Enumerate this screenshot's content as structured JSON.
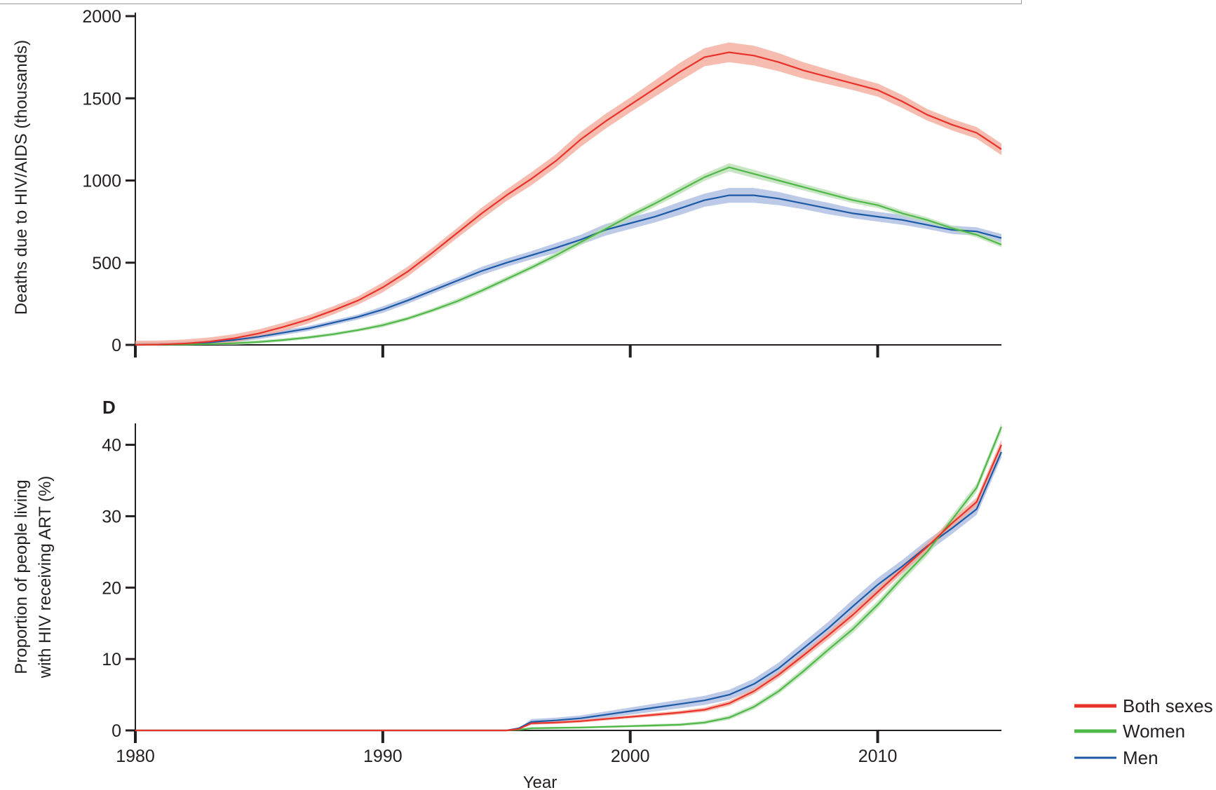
{
  "colors": {
    "both_sexes": "#e8322a",
    "women": "#4fb848",
    "men": "#1c5aa6",
    "both_sexes_band": "#f4a696",
    "women_band": "#b7deb0",
    "men_band": "#a6b8e0",
    "axis": "#231f20"
  },
  "legend": [
    {
      "key": "both_sexes",
      "label": "Both sexes"
    },
    {
      "key": "women",
      "label": "Women"
    },
    {
      "key": "men",
      "label": "Men"
    }
  ],
  "chart_data": [
    {
      "type": "line",
      "panel": "",
      "title": "",
      "xlabel": "",
      "ylabel": "Deaths due to HIV/AIDS (thousands)",
      "xlim": [
        1980,
        2015
      ],
      "ylim": [
        0,
        2000
      ],
      "xticks": [
        1980,
        1990,
        2000,
        2010
      ],
      "yticks": [
        0,
        500,
        1000,
        1500,
        2000
      ],
      "show_x_tick_labels": false,
      "x": [
        1980,
        1981,
        1982,
        1983,
        1984,
        1985,
        1986,
        1987,
        1988,
        1989,
        1990,
        1991,
        1992,
        1993,
        1994,
        1995,
        1996,
        1997,
        1998,
        1999,
        2000,
        2001,
        2002,
        2003,
        2004,
        2005,
        2006,
        2007,
        2008,
        2009,
        2010,
        2011,
        2012,
        2013,
        2014,
        2015
      ],
      "series": [
        {
          "name": "Both sexes",
          "key": "both_sexes",
          "values": [
            0,
            2,
            8,
            20,
            40,
            70,
            110,
            155,
            210,
            270,
            350,
            445,
            560,
            680,
            800,
            910,
            1010,
            1120,
            1250,
            1360,
            1460,
            1560,
            1660,
            1750,
            1780,
            1760,
            1720,
            1670,
            1630,
            1590,
            1550,
            1480,
            1400,
            1340,
            1290,
            1190
          ],
          "band": [
            25,
            25,
            25,
            25,
            25,
            25,
            25,
            25,
            25,
            25,
            30,
            30,
            30,
            30,
            35,
            35,
            40,
            40,
            45,
            45,
            45,
            50,
            55,
            55,
            60,
            60,
            55,
            50,
            45,
            40,
            40,
            40,
            35,
            35,
            35,
            35
          ]
        },
        {
          "name": "Men",
          "key": "men",
          "values": [
            0,
            2,
            6,
            15,
            30,
            50,
            75,
            100,
            135,
            170,
            215,
            270,
            330,
            390,
            450,
            500,
            545,
            590,
            640,
            700,
            740,
            780,
            830,
            880,
            910,
            910,
            890,
            860,
            830,
            800,
            780,
            760,
            730,
            700,
            690,
            650
          ],
          "band": [
            15,
            15,
            15,
            15,
            15,
            15,
            15,
            15,
            15,
            15,
            20,
            20,
            20,
            20,
            25,
            25,
            25,
            30,
            30,
            35,
            35,
            35,
            40,
            40,
            45,
            45,
            40,
            35,
            35,
            30,
            30,
            30,
            25,
            25,
            25,
            25
          ]
        },
        {
          "name": "Women",
          "key": "women",
          "values": [
            0,
            1,
            2,
            5,
            10,
            18,
            30,
            45,
            65,
            90,
            120,
            160,
            210,
            265,
            330,
            400,
            470,
            545,
            625,
            705,
            785,
            860,
            940,
            1020,
            1080,
            1040,
            1000,
            960,
            920,
            880,
            850,
            800,
            760,
            710,
            670,
            610
          ],
          "band": [
            10,
            10,
            10,
            10,
            10,
            10,
            10,
            10,
            10,
            10,
            12,
            12,
            12,
            15,
            15,
            15,
            15,
            18,
            18,
            20,
            20,
            20,
            22,
            22,
            25,
            25,
            22,
            20,
            20,
            18,
            18,
            18,
            16,
            16,
            16,
            16
          ]
        }
      ]
    },
    {
      "type": "line",
      "panel": "D",
      "title": "",
      "xlabel": "Year",
      "ylabel": "Proportion of people living with HIV receiving ART (%)",
      "xlim": [
        1980,
        2015
      ],
      "ylim": [
        0,
        43
      ],
      "xticks": [
        1980,
        1990,
        2000,
        2010
      ],
      "yticks": [
        0,
        10,
        20,
        30,
        40
      ],
      "show_x_tick_labels": true,
      "x": [
        1980,
        1985,
        1990,
        1995,
        1995.5,
        1996,
        1997,
        1998,
        1999,
        2000,
        2001,
        2002,
        2003,
        2004,
        2005,
        2006,
        2007,
        2008,
        2009,
        2010,
        2011,
        2012,
        2013,
        2014,
        2015
      ],
      "series": [
        {
          "name": "Both sexes",
          "key": "both_sexes",
          "values": [
            0,
            0,
            0,
            0,
            0.2,
            1.0,
            1.1,
            1.3,
            1.6,
            1.9,
            2.2,
            2.5,
            2.9,
            3.8,
            5.5,
            7.8,
            10.5,
            13.3,
            16.2,
            19.4,
            22.6,
            25.7,
            29.0,
            32.0,
            40.0
          ],
          "band": [
            0,
            0,
            0,
            0,
            0,
            0.2,
            0.2,
            0.2,
            0.2,
            0.2,
            0.25,
            0.25,
            0.3,
            0.35,
            0.4,
            0.45,
            0.5,
            0.55,
            0.6,
            0.6,
            0.6,
            0.6,
            0.6,
            0.6,
            0.7
          ]
        },
        {
          "name": "Women",
          "key": "women",
          "values": [
            0,
            0,
            0,
            0,
            0.1,
            0.3,
            0.35,
            0.4,
            0.5,
            0.6,
            0.7,
            0.8,
            1.1,
            1.8,
            3.3,
            5.5,
            8.3,
            11.3,
            14.2,
            17.6,
            21.4,
            25.0,
            29.5,
            34.0,
            42.5
          ],
          "band": [
            0,
            0,
            0,
            0,
            0,
            0.15,
            0.15,
            0.15,
            0.15,
            0.15,
            0.2,
            0.2,
            0.25,
            0.3,
            0.35,
            0.4,
            0.45,
            0.5,
            0.55,
            0.55,
            0.55,
            0.55,
            0.6,
            0.6,
            0.7
          ]
        },
        {
          "name": "Men",
          "key": "men",
          "values": [
            0,
            0,
            0,
            0,
            0.3,
            1.2,
            1.4,
            1.7,
            2.2,
            2.7,
            3.2,
            3.7,
            4.2,
            5.0,
            6.5,
            8.7,
            11.5,
            14.3,
            17.4,
            20.4,
            23.0,
            25.8,
            28.3,
            31.0,
            39.0
          ],
          "band": [
            0,
            0,
            0,
            0,
            0,
            0.4,
            0.4,
            0.4,
            0.45,
            0.5,
            0.55,
            0.6,
            0.65,
            0.7,
            0.75,
            0.8,
            0.85,
            0.9,
            0.95,
            0.95,
            0.9,
            0.85,
            0.8,
            0.8,
            0.8
          ]
        }
      ]
    }
  ]
}
